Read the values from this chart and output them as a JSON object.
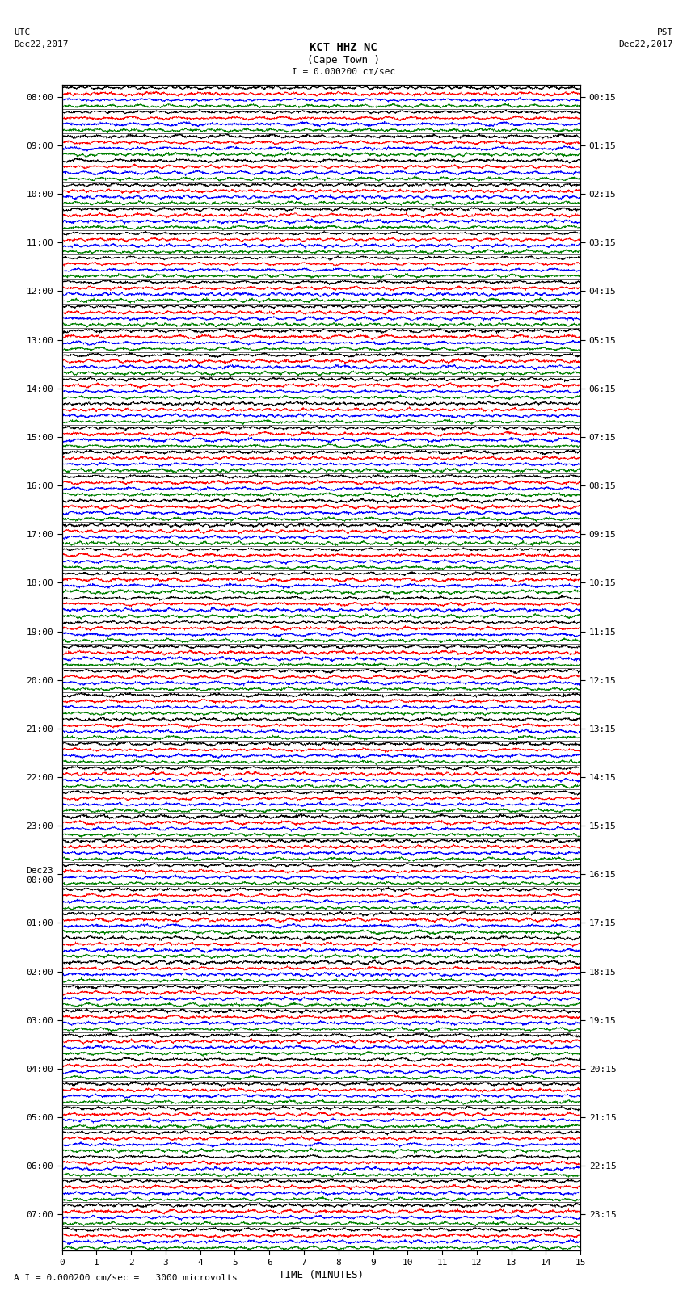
{
  "title_line1": "KCT HHZ NC",
  "title_line2": "(Cape Town )",
  "scale_text": "I = 0.000200 cm/sec",
  "utc_label": "UTC",
  "utc_date": "Dec22,2017",
  "pst_label": "PST",
  "pst_date": "Dec22,2017",
  "xlabel": "TIME (MINUTES)",
  "footer_text": "A I = 0.000200 cm/sec =   3000 microvolts",
  "x_ticks": [
    0,
    1,
    2,
    3,
    4,
    5,
    6,
    7,
    8,
    9,
    10,
    11,
    12,
    13,
    14,
    15
  ],
  "xlim": [
    0,
    15
  ],
  "n_traces": 48,
  "minutes_per_trace": 15,
  "sub_colors": [
    "black",
    "red",
    "blue",
    "green"
  ],
  "background": "white",
  "left_times_utc": [
    "08:00",
    "",
    "09:00",
    "",
    "10:00",
    "",
    "11:00",
    "",
    "12:00",
    "",
    "13:00",
    "",
    "14:00",
    "",
    "15:00",
    "",
    "16:00",
    "",
    "17:00",
    "",
    "18:00",
    "",
    "19:00",
    "",
    "20:00",
    "",
    "21:00",
    "",
    "22:00",
    "",
    "23:00",
    "",
    "Dec23\n00:00",
    "",
    "01:00",
    "",
    "02:00",
    "",
    "03:00",
    "",
    "04:00",
    "",
    "05:00",
    "",
    "06:00",
    "",
    "07:00",
    ""
  ],
  "right_times_pst": [
    "00:15",
    "",
    "01:15",
    "",
    "02:15",
    "",
    "03:15",
    "",
    "04:15",
    "",
    "05:15",
    "",
    "06:15",
    "",
    "07:15",
    "",
    "08:15",
    "",
    "09:15",
    "",
    "10:15",
    "",
    "11:15",
    "",
    "12:15",
    "",
    "13:15",
    "",
    "14:15",
    "",
    "15:15",
    "",
    "16:15",
    "",
    "17:15",
    "",
    "18:15",
    "",
    "19:15",
    "",
    "20:15",
    "",
    "21:15",
    "",
    "22:15",
    "",
    "23:15",
    ""
  ]
}
